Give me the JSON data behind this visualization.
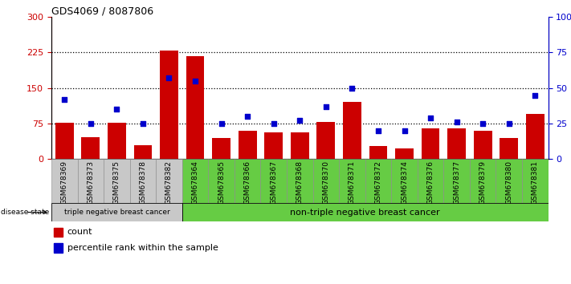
{
  "title": "GDS4069 / 8087806",
  "categories": [
    "GSM678369",
    "GSM678373",
    "GSM678375",
    "GSM678378",
    "GSM678382",
    "GSM678364",
    "GSM678365",
    "GSM678366",
    "GSM678367",
    "GSM678368",
    "GSM678370",
    "GSM678371",
    "GSM678372",
    "GSM678374",
    "GSM678376",
    "GSM678377",
    "GSM678379",
    "GSM678380",
    "GSM678381"
  ],
  "counts": [
    77,
    47,
    77,
    30,
    230,
    218,
    45,
    60,
    57,
    56,
    78,
    120,
    28,
    22,
    65,
    65,
    60,
    45,
    95
  ],
  "percentiles": [
    42,
    25,
    35,
    25,
    57,
    55,
    25,
    30,
    25,
    27,
    37,
    50,
    20,
    20,
    29,
    26,
    25,
    25,
    45
  ],
  "group1_count": 5,
  "group1_label": "triple negative breast cancer",
  "group2_label": "non-triple negative breast cancer",
  "bar_color": "#cc0000",
  "dot_color": "#0000cc",
  "left_axis_color": "#cc0000",
  "right_axis_color": "#0000cc",
  "ylim_left": [
    0,
    300
  ],
  "ylim_right": [
    0,
    100
  ],
  "left_ticks": [
    0,
    75,
    150,
    225,
    300
  ],
  "right_ticks": [
    0,
    25,
    50,
    75,
    100
  ],
  "right_tick_labels": [
    "0",
    "25",
    "50",
    "75",
    "100%"
  ],
  "hline_values": [
    75,
    150,
    225
  ],
  "hline_color": "#000000",
  "group1_bg": "#c8c8c8",
  "group2_bg": "#66cc44",
  "legend_count_label": "count",
  "legend_pct_label": "percentile rank within the sample",
  "disease_state_label": "disease state"
}
